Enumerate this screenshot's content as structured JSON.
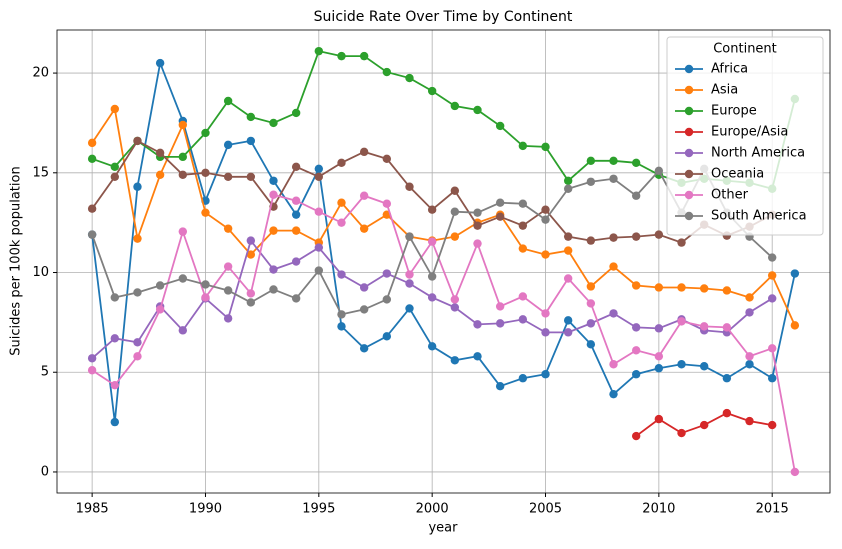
{
  "chart_data": {
    "type": "line",
    "title": "Suicide Rate Over Time by Continent",
    "x_label": "year",
    "y_label": "Suicides per 100k population",
    "x": [
      1985,
      1986,
      1987,
      1988,
      1989,
      1990,
      1991,
      1992,
      1993,
      1994,
      1995,
      1996,
      1997,
      1998,
      1999,
      2000,
      2001,
      2002,
      2003,
      2004,
      2005,
      2006,
      2007,
      2008,
      2009,
      2010,
      2011,
      2012,
      2013,
      2014,
      2015,
      2016
    ],
    "xlim": [
      1983.45,
      2017.55
    ],
    "xticks": [
      1985,
      1990,
      1995,
      2000,
      2005,
      2010,
      2015
    ],
    "ylim": [
      -1.055,
      22.16
    ],
    "yticks": [
      0,
      5,
      10,
      15,
      20
    ],
    "grid": true,
    "legend_title": "Continent",
    "legend_position": "upper right",
    "series": [
      {
        "name": "Africa",
        "color": "#1f77b4",
        "values": [
          11.9,
          2.5,
          14.3,
          20.5,
          17.6,
          13.6,
          16.4,
          16.6,
          14.6,
          12.9,
          15.2,
          7.3,
          6.2,
          6.8,
          8.2,
          6.3,
          5.6,
          5.8,
          4.3,
          4.7,
          4.9,
          7.6,
          6.4,
          3.9,
          4.9,
          5.2,
          5.4,
          5.3,
          4.7,
          5.4,
          4.7,
          9.95
        ]
      },
      {
        "name": "Asia",
        "color": "#ff7f0e",
        "values": [
          16.5,
          18.2,
          11.7,
          14.9,
          17.4,
          13.0,
          12.2,
          10.9,
          12.1,
          12.1,
          11.5,
          13.5,
          12.2,
          12.9,
          11.8,
          11.6,
          11.8,
          12.5,
          12.9,
          11.2,
          10.9,
          11.1,
          9.3,
          10.3,
          9.35,
          9.25,
          9.25,
          9.2,
          9.1,
          8.75,
          9.85,
          7.35
        ]
      },
      {
        "name": "Europe",
        "color": "#2ca02c",
        "values": [
          15.7,
          15.3,
          16.6,
          15.8,
          15.8,
          17.0,
          18.6,
          17.8,
          17.5,
          18.0,
          21.1,
          20.85,
          20.85,
          20.05,
          19.75,
          19.1,
          18.35,
          18.15,
          17.35,
          16.35,
          16.3,
          14.6,
          15.6,
          15.6,
          15.5,
          14.9,
          14.5,
          14.7,
          14.6,
          14.5,
          14.2,
          18.7
        ]
      },
      {
        "name": "Europe/Asia",
        "color": "#d62728",
        "values": [
          null,
          null,
          null,
          null,
          null,
          null,
          null,
          null,
          null,
          null,
          null,
          null,
          null,
          null,
          null,
          null,
          null,
          null,
          null,
          null,
          null,
          null,
          null,
          null,
          1.8,
          2.65,
          1.95,
          2.35,
          2.95,
          2.55,
          2.35,
          null
        ]
      },
      {
        "name": "North America",
        "color": "#9467bd",
        "values": [
          5.7,
          6.7,
          6.5,
          8.3,
          7.1,
          8.7,
          7.7,
          11.6,
          10.15,
          10.55,
          11.25,
          9.9,
          9.25,
          9.95,
          9.45,
          8.75,
          8.25,
          7.4,
          7.45,
          7.65,
          7.0,
          7.0,
          7.45,
          7.95,
          7.25,
          7.2,
          7.65,
          7.1,
          7.0,
          8.0,
          8.7,
          null
        ]
      },
      {
        "name": "Oceania",
        "color": "#8c564b",
        "values": [
          13.2,
          14.8,
          16.6,
          16.0,
          14.9,
          15.0,
          14.8,
          14.8,
          13.3,
          15.3,
          14.8,
          15.5,
          16.05,
          15.7,
          14.3,
          13.15,
          14.1,
          12.35,
          12.8,
          12.35,
          13.15,
          11.8,
          11.6,
          11.75,
          11.8,
          11.9,
          11.5,
          12.4,
          11.85,
          12.3,
          12.9,
          null
        ]
      },
      {
        "name": "Other",
        "color": "#e377c2",
        "values": [
          5.1,
          4.35,
          5.8,
          8.15,
          12.05,
          8.75,
          10.3,
          8.95,
          13.9,
          13.6,
          13.05,
          12.5,
          13.85,
          13.45,
          9.9,
          11.55,
          8.65,
          11.45,
          8.3,
          8.8,
          7.95,
          9.7,
          8.45,
          5.4,
          6.1,
          5.8,
          7.55,
          7.3,
          7.25,
          5.8,
          6.2,
          0
        ]
      },
      {
        "name": "South America",
        "color": "#7f7f7f",
        "values": [
          11.9,
          8.75,
          9.0,
          9.35,
          9.7,
          9.4,
          9.1,
          8.5,
          9.15,
          8.7,
          10.1,
          7.9,
          8.15,
          8.65,
          11.8,
          9.8,
          13.05,
          13.0,
          13.5,
          13.45,
          12.65,
          14.2,
          14.55,
          14.7,
          13.85,
          15.1,
          13.0,
          15.2,
          13.0,
          11.8,
          10.75,
          null
        ]
      }
    ]
  }
}
